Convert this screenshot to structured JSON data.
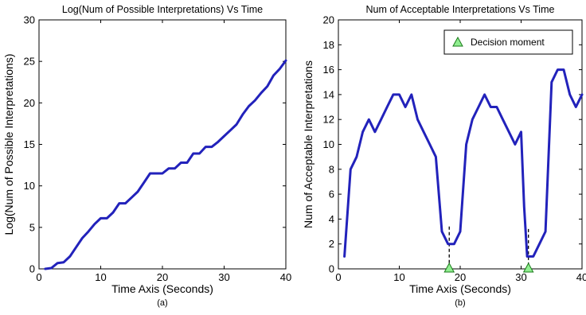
{
  "chart_data": [
    {
      "type": "line",
      "panel_label": "(a)",
      "title": "Log(Num of Possible Interpretations) Vs Time",
      "xlabel": "Time Axis (Seconds)",
      "ylabel": "Log(Num of Possible Interpretations)",
      "xlim": [
        0,
        40
      ],
      "ylim": [
        0,
        30
      ],
      "xticks": [
        0,
        10,
        20,
        30,
        40
      ],
      "yticks": [
        0,
        5,
        10,
        15,
        20,
        25,
        30
      ],
      "grid": false,
      "line_color": "#2222bb",
      "series": [
        {
          "x": [
            1,
            2,
            3,
            4,
            5,
            6,
            7,
            8,
            9,
            10,
            11,
            12,
            13,
            14,
            15,
            16,
            17,
            18,
            19,
            20,
            21,
            22,
            23,
            24,
            25,
            26,
            27,
            28,
            29,
            30,
            31,
            32,
            33,
            34,
            35,
            36,
            37,
            38,
            39,
            40
          ],
          "y": [
            0,
            0.1,
            0.7,
            0.8,
            1.5,
            2.6,
            3.7,
            4.5,
            5.4,
            6.1,
            6.1,
            6.8,
            7.9,
            7.9,
            8.6,
            9.3,
            10.4,
            11.5,
            11.5,
            11.5,
            12.1,
            12.1,
            12.8,
            12.8,
            13.9,
            13.9,
            14.7,
            14.7,
            15.3,
            16.0,
            16.7,
            17.4,
            18.6,
            19.6,
            20.3,
            21.2,
            22.0,
            23.3,
            24.1,
            25.1
          ]
        }
      ]
    },
    {
      "type": "line",
      "panel_label": "(b)",
      "title": "Num of Acceptable Interpretations Vs Time",
      "xlabel": "Time Axis (Seconds)",
      "ylabel": "Num of Acceptable Interpretations",
      "xlim": [
        0,
        40
      ],
      "ylim": [
        0,
        20
      ],
      "xticks": [
        0,
        10,
        20,
        30,
        40
      ],
      "yticks": [
        0,
        2,
        4,
        6,
        8,
        10,
        12,
        14,
        16,
        18,
        20
      ],
      "grid": false,
      "legend": {
        "entries": [
          "Decision moment"
        ],
        "position": "top-right"
      },
      "line_color": "#2222bb",
      "marker_color": "#90ee90",
      "series": [
        {
          "x": [
            1,
            2,
            3,
            4,
            5,
            6,
            7,
            8,
            9,
            10,
            11,
            12,
            13,
            14,
            15,
            16,
            17,
            18,
            19,
            20,
            21,
            22,
            23,
            24,
            25,
            26,
            27,
            28,
            29,
            30,
            30.5,
            31,
            32,
            33,
            34,
            35,
            36,
            37,
            38,
            39,
            40
          ],
          "y": [
            1,
            8,
            9,
            11,
            12,
            11,
            12,
            13,
            14,
            14,
            13,
            14,
            12,
            11,
            10,
            9,
            3,
            2,
            2,
            3,
            10,
            12,
            13,
            14,
            13,
            13,
            12,
            11,
            10,
            11,
            5,
            1,
            1,
            2,
            3,
            15,
            16,
            16,
            14,
            13,
            14
          ]
        }
      ],
      "decision_moments": [
        {
          "x": 18.2,
          "y": 0,
          "line_top": 3.4
        },
        {
          "x": 31.2,
          "y": 0,
          "line_top": 3.2
        }
      ]
    }
  ]
}
